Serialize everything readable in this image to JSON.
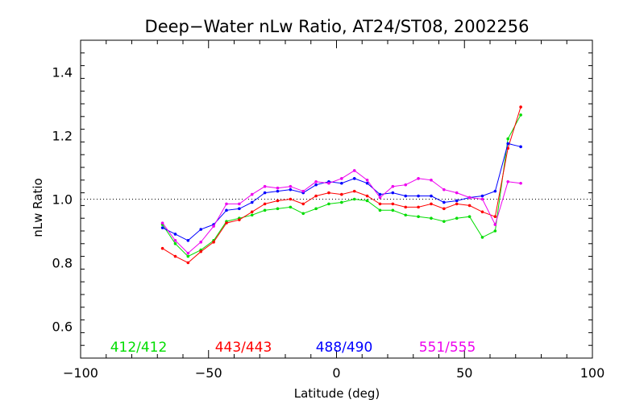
{
  "chart_data": {
    "type": "line",
    "title": "Deep−Water nLw Ratio, AT24/ST08, 2002256",
    "xlabel": "Latitude (deg)",
    "ylabel": "nLw Ratio",
    "xlim": [
      -100,
      100
    ],
    "ylim": [
      0.5,
      1.5
    ],
    "x_ticks": [
      -100,
      -50,
      0,
      50,
      100
    ],
    "x_tick_labels": [
      "−100",
      "−50",
      "0",
      "50",
      "100"
    ],
    "y_ticks": [
      0.6,
      0.8,
      1.0,
      1.2,
      1.4
    ],
    "y_tick_labels": [
      "0.6",
      "0.8",
      "1.0",
      "1.2",
      "1.4"
    ],
    "reference_line": 1.0,
    "grid": false,
    "legend_position": "bottom",
    "x": [
      -68,
      -63,
      -58,
      -53,
      -48,
      -43,
      -38,
      -33,
      -28,
      -23,
      -18,
      -13,
      -8,
      -3,
      2,
      7,
      12,
      17,
      22,
      27,
      32,
      37,
      42,
      47,
      52,
      57,
      62,
      67,
      72
    ],
    "series": [
      {
        "name": "412/412",
        "color": "#00dd00",
        "values": [
          0.92,
          0.86,
          0.82,
          0.84,
          0.87,
          0.93,
          0.94,
          0.95,
          0.965,
          0.97,
          0.975,
          0.955,
          0.97,
          0.985,
          0.99,
          1.0,
          0.995,
          0.965,
          0.965,
          0.95,
          0.945,
          0.94,
          0.93,
          0.94,
          0.945,
          0.88,
          0.9,
          1.19,
          1.265
        ]
      },
      {
        "name": "443/443",
        "color": "#ff0000",
        "values": [
          0.845,
          0.82,
          0.8,
          0.835,
          0.865,
          0.925,
          0.935,
          0.96,
          0.985,
          0.995,
          1.0,
          0.985,
          1.01,
          1.02,
          1.015,
          1.025,
          1.01,
          0.985,
          0.985,
          0.975,
          0.975,
          0.985,
          0.97,
          0.985,
          0.98,
          0.96,
          0.945,
          1.16,
          1.29
        ]
      },
      {
        "name": "488/490",
        "color": "#0000ff",
        "values": [
          0.91,
          0.89,
          0.87,
          0.905,
          0.92,
          0.965,
          0.97,
          0.99,
          1.02,
          1.025,
          1.03,
          1.02,
          1.045,
          1.055,
          1.05,
          1.065,
          1.05,
          1.015,
          1.02,
          1.01,
          1.01,
          1.01,
          0.99,
          0.995,
          1.005,
          1.01,
          1.025,
          1.175,
          1.165
        ]
      },
      {
        "name": "551/555",
        "color": "#ee00ee",
        "values": [
          0.925,
          0.87,
          0.83,
          0.865,
          0.915,
          0.985,
          0.985,
          1.015,
          1.04,
          1.035,
          1.04,
          1.025,
          1.055,
          1.05,
          1.065,
          1.09,
          1.06,
          1.005,
          1.04,
          1.045,
          1.065,
          1.06,
          1.03,
          1.02,
          1.005,
          1.0,
          0.92,
          1.055,
          1.05
        ]
      }
    ]
  }
}
